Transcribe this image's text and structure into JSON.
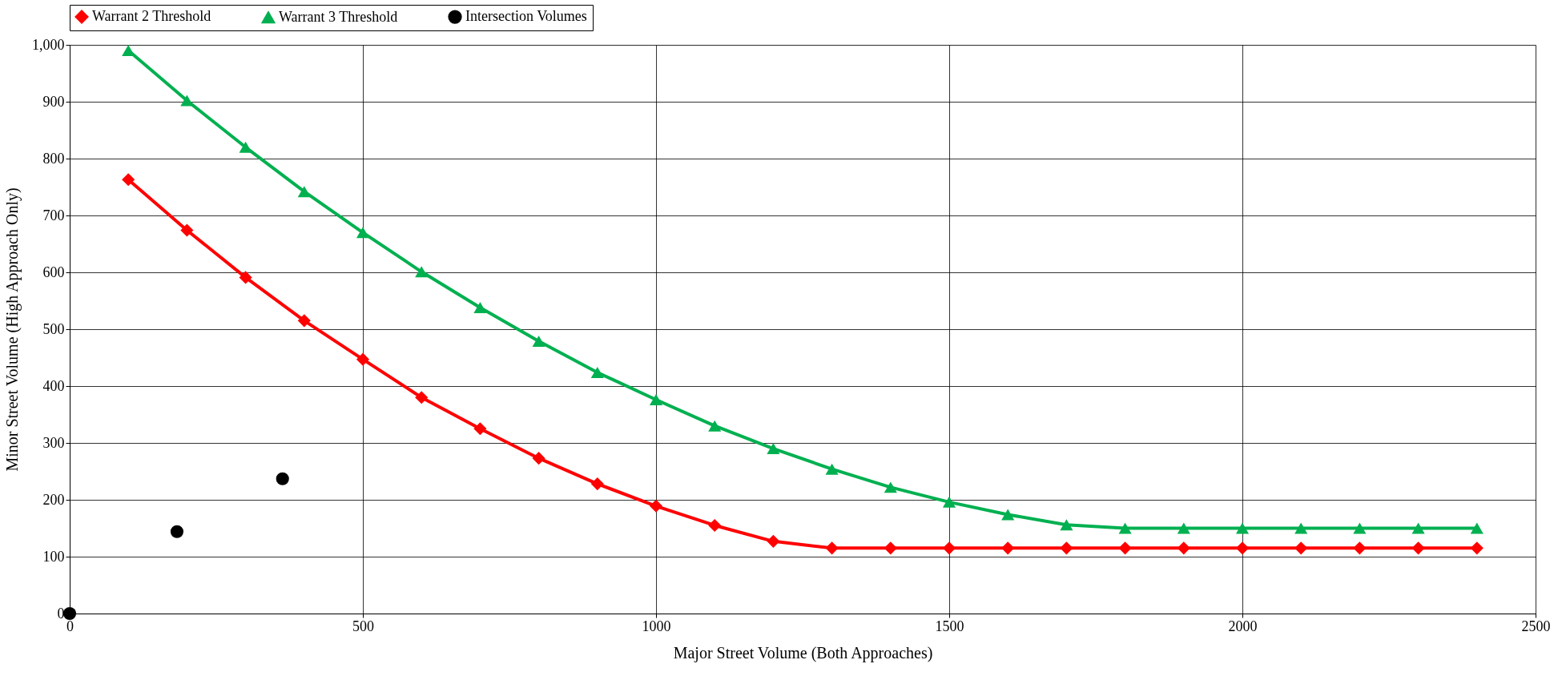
{
  "chart_data": {
    "type": "line",
    "xlabel": "Major Street Volume (Both Approaches)",
    "ylabel": "Minor Street Volume (High Approach Only)",
    "series": [
      {
        "name": "Warrant 2 Threshold",
        "marker": "diamond",
        "color": "#ff0000",
        "x": [
          100,
          200,
          300,
          400,
          500,
          600,
          700,
          800,
          900,
          1000,
          1100,
          1200,
          1300,
          1400,
          1500,
          1600,
          1700,
          1800,
          1900,
          2000,
          2100,
          2200,
          2300,
          2400
        ],
        "values": [
          763,
          674,
          591,
          515,
          447,
          380,
          325,
          273,
          228,
          189,
          155,
          127,
          115,
          115,
          115,
          115,
          115,
          115,
          115,
          115,
          115,
          115,
          115,
          115
        ]
      },
      {
        "name": "Warrant 3 Threshold",
        "marker": "triangle",
        "color": "#00b050",
        "x": [
          100,
          200,
          300,
          400,
          500,
          600,
          700,
          800,
          900,
          1000,
          1100,
          1200,
          1300,
          1400,
          1500,
          1600,
          1700,
          1800,
          1900,
          2000,
          2100,
          2200,
          2300,
          2400
        ],
        "values": [
          990,
          902,
          820,
          742,
          670,
          601,
          538,
          479,
          424,
          376,
          330,
          290,
          254,
          222,
          196,
          174,
          156,
          150,
          150,
          150,
          150,
          150,
          150,
          150
        ]
      },
      {
        "name": "Intersection Volumes",
        "type": "scatter",
        "marker": "circle",
        "color": "#000000",
        "x": [
          0,
          183,
          363
        ],
        "values": [
          0,
          144,
          237
        ]
      }
    ],
    "xlim": [
      0,
      2500
    ],
    "xticks": [
      0,
      500,
      1000,
      1500,
      2000,
      2500
    ],
    "ylim": [
      0,
      1000
    ],
    "yticks": [
      0,
      100,
      200,
      300,
      400,
      500,
      600,
      700,
      800,
      900,
      {
        "value": 1000,
        "label": "1,000"
      }
    ],
    "grid": true,
    "legend": "top"
  }
}
